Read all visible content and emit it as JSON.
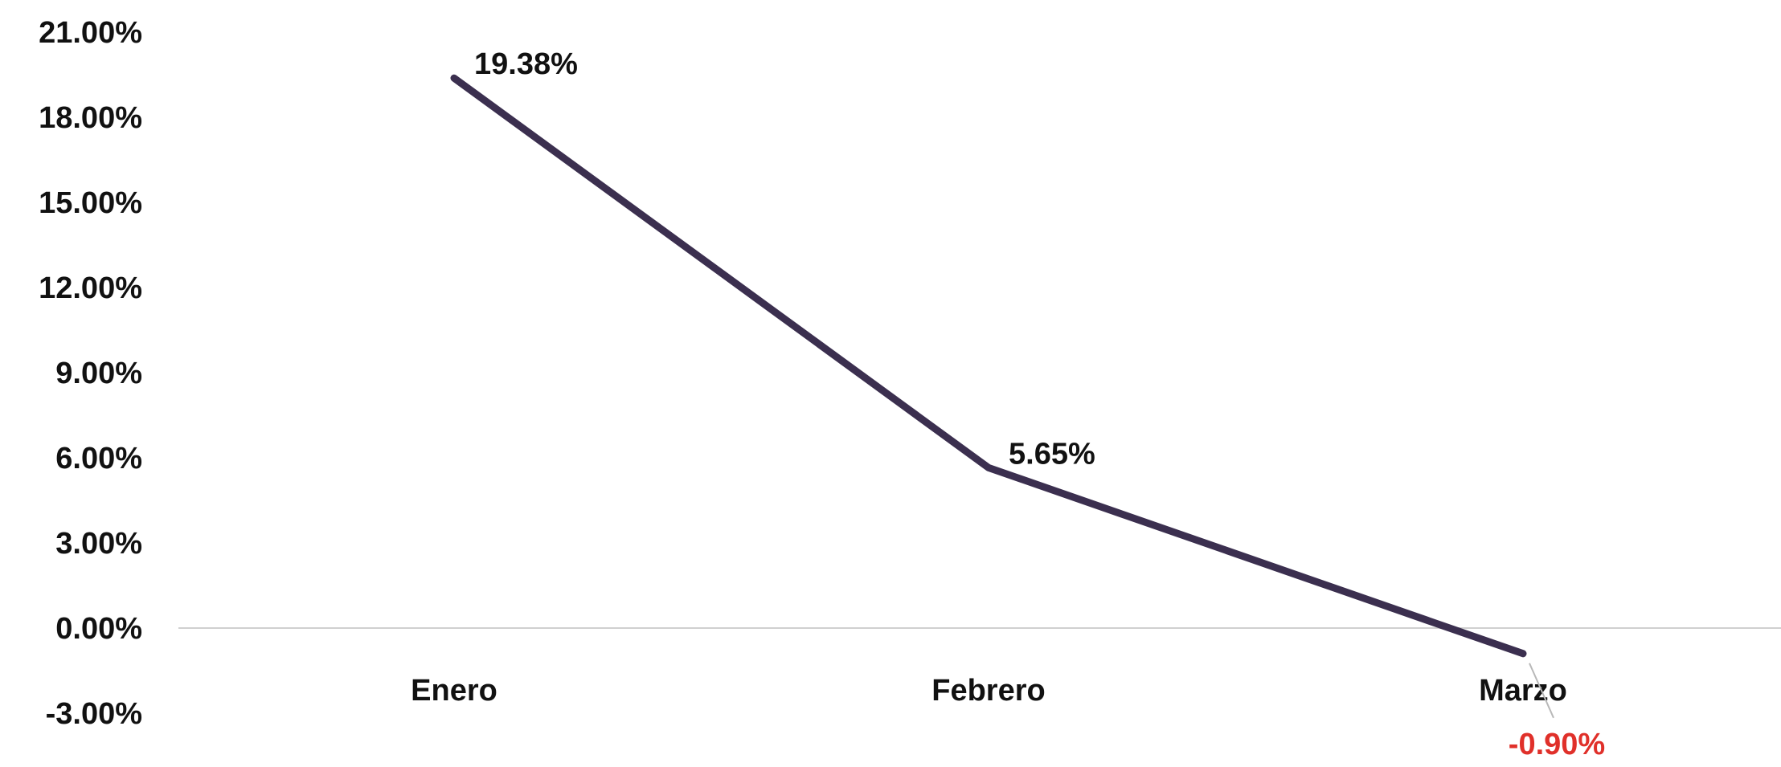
{
  "chart_data": {
    "type": "line",
    "title": "",
    "xlabel": "",
    "ylabel": "",
    "categories": [
      "Enero",
      "Febrero",
      "Marzo"
    ],
    "series": [
      {
        "values": [
          19.38,
          5.65,
          -0.9
        ],
        "labels": [
          "19.38%",
          "5.65%",
          "-0.90%"
        ],
        "color": "#3b2f4f"
      }
    ],
    "ylim": [
      -3,
      21
    ],
    "yticks": [
      21,
      18,
      15,
      12,
      9,
      6,
      3,
      0,
      -3
    ],
    "ytick_labels": [
      "21.00%",
      "18.00%",
      "15.00%",
      "12.00%",
      "9.00%",
      "6.00%",
      "3.00%",
      "0.00%",
      "-3.00%"
    ],
    "negative_label_color": "#e0302a",
    "positive_label_color": "#111111",
    "zero_line_color": "#d0d0d0",
    "grid": false,
    "legend": "none"
  }
}
